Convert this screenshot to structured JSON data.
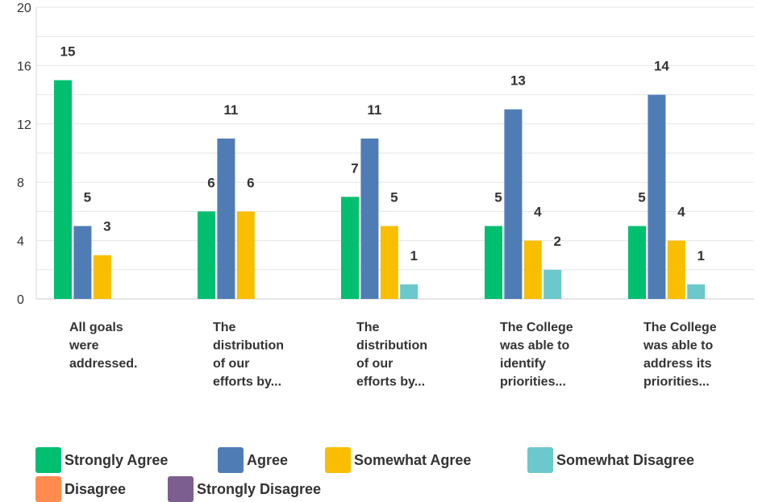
{
  "chart_data": {
    "type": "bar",
    "title": "",
    "xlabel": "",
    "ylabel": "",
    "ylim": [
      0,
      20
    ],
    "yticks": [
      0,
      4,
      8,
      12,
      16,
      20
    ],
    "grid": true,
    "legend_position": "bottom",
    "categories": [
      [
        "All goals",
        "were",
        "addressed."
      ],
      [
        "The",
        "distribution",
        "of our",
        "efforts by..."
      ],
      [
        "The",
        "distribution",
        "of our",
        "efforts by..."
      ],
      [
        "The College",
        "was able to",
        "identify",
        "priorities..."
      ],
      [
        "The College",
        "was able to",
        "address its",
        "priorities..."
      ]
    ],
    "series": [
      {
        "name": "Strongly Agree",
        "color": "#00bf6f",
        "values": [
          15,
          6,
          7,
          5,
          5
        ]
      },
      {
        "name": "Agree",
        "color": "#507cb6",
        "values": [
          5,
          11,
          11,
          13,
          14
        ]
      },
      {
        "name": "Somewhat Agree",
        "color": "#f9be00",
        "values": [
          3,
          6,
          5,
          4,
          4
        ]
      },
      {
        "name": "Somewhat Disagree",
        "color": "#6bc8cd",
        "values": [
          0,
          0,
          1,
          2,
          1
        ]
      },
      {
        "name": "Disagree",
        "color": "#ff8b4f",
        "values": [
          0,
          0,
          0,
          0,
          0
        ]
      },
      {
        "name": "Strongly Disagree",
        "color": "#7d5e90",
        "values": [
          0,
          0,
          0,
          0,
          0
        ]
      }
    ]
  }
}
